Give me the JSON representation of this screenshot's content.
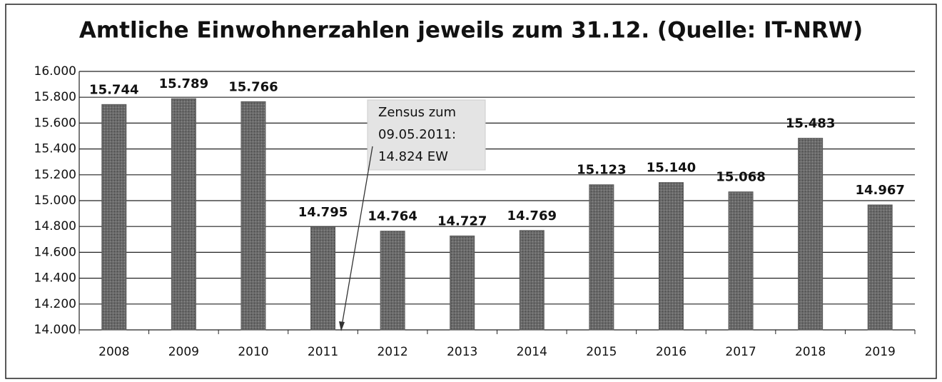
{
  "chart_data": {
    "type": "bar",
    "title": "Amtliche Einwohnerzahlen jeweils zum 31.12. (Quelle: IT-NRW)",
    "categories": [
      "2008",
      "2009",
      "2010",
      "2011",
      "2012",
      "2013",
      "2014",
      "2015",
      "2016",
      "2017",
      "2018",
      "2019"
    ],
    "values": [
      15744,
      15789,
      15766,
      14795,
      14764,
      14727,
      14769,
      15123,
      15140,
      15068,
      15483,
      14967
    ],
    "value_labels": [
      "15.744",
      "15.789",
      "15.766",
      "14.795",
      "14.764",
      "14.727",
      "14.769",
      "15.123",
      "15.140",
      "15.068",
      "15.483",
      "14.967"
    ],
    "color": "#5c5c5c",
    "ylim": [
      14000,
      16000
    ],
    "yticks": [
      {
        "value": 14000,
        "label": "14.000"
      },
      {
        "value": 14200,
        "label": "14.200"
      },
      {
        "value": 14400,
        "label": "14.400"
      },
      {
        "value": 14600,
        "label": "14.600"
      },
      {
        "value": 14800,
        "label": "14.800"
      },
      {
        "value": 15000,
        "label": "15.000"
      },
      {
        "value": 15200,
        "label": "15.200"
      },
      {
        "value": 15400,
        "label": "15.400"
      },
      {
        "value": 15600,
        "label": "15.600"
      },
      {
        "value": 15800,
        "label": "15.800"
      },
      {
        "value": 16000,
        "label": "16.000"
      }
    ],
    "grid": true,
    "annotation": [
      "Zensus zum",
      "09.05.2011:",
      "14.824 EW"
    ]
  }
}
